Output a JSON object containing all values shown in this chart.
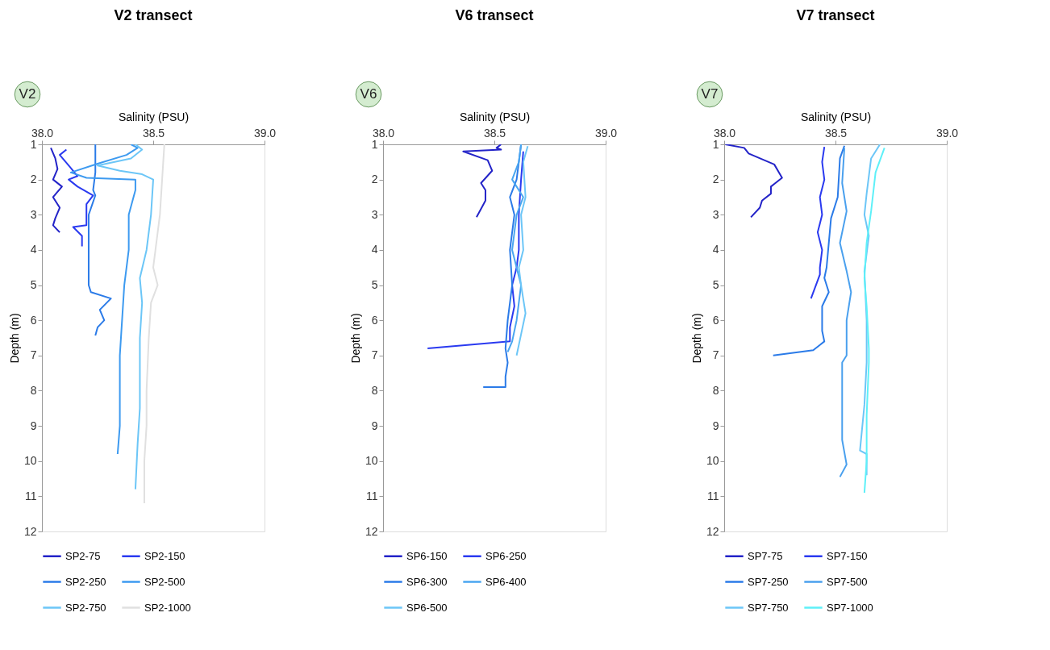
{
  "chart_data": [
    {
      "type": "line",
      "orientation": "horizontal",
      "title": "V2 transect",
      "xlabel": "Salinity (PSU)",
      "ylabel": "Depth (m)",
      "annotations": [
        "V2"
      ],
      "xlim": [
        38.0,
        39.0
      ],
      "xticks": [
        {
          "value": 38.0,
          "label": "38.0"
        },
        {
          "value": 38.5,
          "label": "38.5"
        },
        {
          "value": 39.0,
          "label": "39.0"
        }
      ],
      "ylim": [
        12,
        1
      ],
      "yticks": [
        1,
        2,
        3,
        4,
        5,
        6,
        7,
        8,
        9,
        10,
        11,
        12
      ],
      "grid": false,
      "legend": "bottom",
      "series": [
        {
          "name": "SP2-75",
          "color": "#2323c8",
          "values": [
            38.04,
            38.06,
            38.07,
            38.05,
            38.09,
            38.05,
            38.08,
            38.06,
            38.05,
            38.08
          ],
          "x": [
            1.1,
            1.4,
            1.7,
            2.0,
            2.2,
            2.5,
            2.8,
            3.1,
            3.3,
            3.5
          ]
        },
        {
          "name": "SP2-150",
          "color": "#2a3af0",
          "values": [
            38.11,
            38.08,
            38.12,
            38.16,
            38.12,
            38.16,
            38.23,
            38.2,
            38.2,
            38.14,
            38.18,
            38.18
          ],
          "x": [
            1.15,
            1.3,
            1.6,
            1.9,
            2.0,
            2.2,
            2.45,
            2.7,
            3.3,
            3.35,
            3.6,
            3.9
          ]
        },
        {
          "name": "SP2-250",
          "color": "#2b7be8",
          "values": [
            38.24,
            38.24,
            38.23,
            38.24,
            38.21,
            38.21,
            38.21,
            38.22,
            38.31,
            38.26,
            38.28,
            38.25,
            38.24
          ],
          "x": [
            1.0,
            1.8,
            2.3,
            2.45,
            3.0,
            4.0,
            5.0,
            5.2,
            5.38,
            5.7,
            6.0,
            6.2,
            6.43
          ]
        },
        {
          "name": "SP2-500",
          "color": "#3d9af0",
          "values": [
            38.4,
            38.43,
            38.38,
            38.25,
            38.13,
            38.2,
            38.42,
            38.42,
            38.39,
            38.39,
            38.37,
            38.36,
            38.35,
            38.35,
            38.35,
            38.34
          ],
          "x": [
            1.0,
            1.1,
            1.3,
            1.55,
            1.8,
            1.95,
            2.0,
            2.3,
            3.0,
            4.0,
            5.0,
            6.0,
            7.0,
            8.0,
            9.0,
            9.8
          ]
        },
        {
          "name": "SP2-750",
          "color": "#6cc6f7",
          "values": [
            38.42,
            38.45,
            38.4,
            38.25,
            38.35,
            38.45,
            38.5,
            38.49,
            38.47,
            38.44,
            38.45,
            38.44,
            38.44,
            38.44,
            38.43,
            38.42
          ],
          "x": [
            1.0,
            1.15,
            1.4,
            1.6,
            1.75,
            1.85,
            2.0,
            3.0,
            4.0,
            4.8,
            5.5,
            6.5,
            7.5,
            8.5,
            9.5,
            10.8
          ]
        },
        {
          "name": "SP2-1000",
          "color": "#e0e0e0",
          "values": [
            38.55,
            38.54,
            38.53,
            38.52,
            38.5,
            38.52,
            38.49,
            38.48,
            38.47,
            38.47,
            38.46,
            38.46
          ],
          "x": [
            1.0,
            2.0,
            3.0,
            3.5,
            4.5,
            5.0,
            5.5,
            6.5,
            8.0,
            9.0,
            10.0,
            11.2
          ]
        }
      ]
    },
    {
      "type": "line",
      "orientation": "horizontal",
      "title": "V6 transect",
      "xlabel": "Salinity (PSU)",
      "ylabel": "Depth (m)",
      "annotations": [
        "V6"
      ],
      "xlim": [
        38.0,
        39.0
      ],
      "xticks": [
        {
          "value": 38.0,
          "label": "38.0"
        },
        {
          "value": 38.5,
          "label": "38.5"
        },
        {
          "value": 39.0,
          "label": "39.0"
        }
      ],
      "ylim": [
        12,
        1
      ],
      "yticks": [
        1,
        2,
        3,
        4,
        5,
        6,
        7,
        8,
        9,
        10,
        11,
        12
      ],
      "grid": false,
      "legend": "bottom",
      "series": [
        {
          "name": "SP6-150",
          "color": "#2323c8",
          "values": [
            38.53,
            38.51,
            38.53,
            38.36,
            38.47,
            38.49,
            38.44,
            38.46,
            38.46,
            38.42
          ],
          "x": [
            1.0,
            1.1,
            1.15,
            1.2,
            1.45,
            1.75,
            2.1,
            2.3,
            2.6,
            3.07
          ]
        },
        {
          "name": "SP6-250",
          "color": "#2a3af0",
          "values": [
            38.63,
            38.62,
            38.61,
            38.61,
            38.6,
            38.58,
            38.59,
            38.57,
            38.57,
            38.2
          ],
          "x": [
            1.2,
            2.0,
            3.0,
            4.0,
            4.5,
            5.0,
            5.6,
            6.2,
            6.6,
            6.8
          ]
        },
        {
          "name": "SP6-300",
          "color": "#2b7be8",
          "values": [
            38.62,
            38.6,
            38.57,
            38.59,
            38.57,
            38.58,
            38.56,
            38.55,
            38.56,
            38.55,
            38.55,
            38.45
          ],
          "x": [
            1.0,
            2.0,
            2.5,
            3.0,
            4.0,
            5.0,
            6.0,
            6.8,
            7.2,
            7.6,
            7.9,
            7.9
          ]
        },
        {
          "name": "SP6-400",
          "color": "#4aa6f0",
          "values": [
            38.62,
            38.61,
            38.58,
            38.63,
            38.6,
            38.58,
            38.62,
            38.6,
            38.58,
            38.56
          ],
          "x": [
            1.0,
            1.5,
            2.0,
            2.5,
            3.0,
            4.0,
            5.0,
            6.0,
            6.6,
            6.9
          ]
        },
        {
          "name": "SP6-500",
          "color": "#6cc6f7",
          "values": [
            38.65,
            38.63,
            38.64,
            38.62,
            38.63,
            38.61,
            38.62,
            38.64,
            38.62,
            38.6
          ],
          "x": [
            1.05,
            1.5,
            2.5,
            3.0,
            4.0,
            4.5,
            5.0,
            5.8,
            6.4,
            7.0
          ]
        }
      ]
    },
    {
      "type": "line",
      "orientation": "horizontal",
      "title": "V7 transect",
      "xlabel": "Salinity (PSU)",
      "ylabel": "Depth (m)",
      "annotations": [
        "V7"
      ],
      "xlim": [
        38.0,
        39.0
      ],
      "xticks": [
        {
          "value": 38.0,
          "label": "38.0"
        },
        {
          "value": 38.5,
          "label": "38.5"
        },
        {
          "value": 39.0,
          "label": "39.0"
        }
      ],
      "ylim": [
        12,
        1
      ],
      "yticks": [
        1,
        2,
        3,
        4,
        5,
        6,
        7,
        8,
        9,
        10,
        11,
        12
      ],
      "grid": false,
      "legend": "bottom",
      "series": [
        {
          "name": "SP7-75",
          "color": "#2323c8",
          "values": [
            38.005,
            38.09,
            38.11,
            38.225,
            38.25,
            38.26,
            38.23,
            38.21,
            38.21,
            38.17,
            38.16,
            38.12
          ],
          "x": [
            1.0,
            1.1,
            1.26,
            1.57,
            1.84,
            1.95,
            2.1,
            2.2,
            2.4,
            2.6,
            2.8,
            3.07
          ]
        },
        {
          "name": "SP7-150",
          "color": "#2a3af0",
          "values": [
            38.45,
            38.44,
            38.45,
            38.43,
            38.44,
            38.42,
            38.44,
            38.43,
            38.43,
            38.39
          ],
          "x": [
            1.07,
            1.5,
            2.0,
            2.5,
            3.0,
            3.5,
            4.0,
            4.5,
            4.7,
            5.38
          ]
        },
        {
          "name": "SP7-250",
          "color": "#2b7be8",
          "values": [
            38.54,
            38.52,
            38.51,
            38.48,
            38.47,
            38.46,
            38.45,
            38.47,
            38.44,
            38.44,
            38.45,
            38.4,
            38.22
          ],
          "x": [
            1.04,
            1.4,
            2.5,
            3.1,
            3.8,
            4.5,
            4.8,
            5.2,
            5.6,
            6.3,
            6.6,
            6.85,
            7.0
          ]
        },
        {
          "name": "SP7-500",
          "color": "#4aa0ee",
          "values": [
            38.54,
            38.53,
            38.55,
            38.52,
            38.55,
            38.57,
            38.55,
            38.55,
            38.55,
            38.53,
            38.53,
            38.53,
            38.55,
            38.52
          ],
          "x": [
            1.1,
            2.1,
            2.9,
            3.8,
            4.6,
            5.2,
            6.0,
            6.8,
            7.0,
            7.2,
            8.2,
            9.4,
            10.1,
            10.45
          ]
        },
        {
          "name": "SP7-750",
          "color": "#6cc6f7",
          "values": [
            38.7,
            38.66,
            38.64,
            38.63,
            38.65,
            38.63,
            38.64,
            38.64,
            38.64,
            38.63,
            38.61,
            38.64,
            38.64
          ],
          "x": [
            1.0,
            1.4,
            2.4,
            3.0,
            3.6,
            4.6,
            6.0,
            6.8,
            7.2,
            8.4,
            9.7,
            9.8,
            10.4
          ]
        },
        {
          "name": "SP7-1000",
          "color": "#5ef0f8",
          "values": [
            38.72,
            38.68,
            38.66,
            38.64,
            38.63,
            38.64,
            38.65,
            38.65,
            38.64,
            38.64,
            38.63
          ],
          "x": [
            1.1,
            1.8,
            2.9,
            3.8,
            4.8,
            5.6,
            6.8,
            7.2,
            8.7,
            10.0,
            10.9
          ]
        }
      ]
    }
  ]
}
